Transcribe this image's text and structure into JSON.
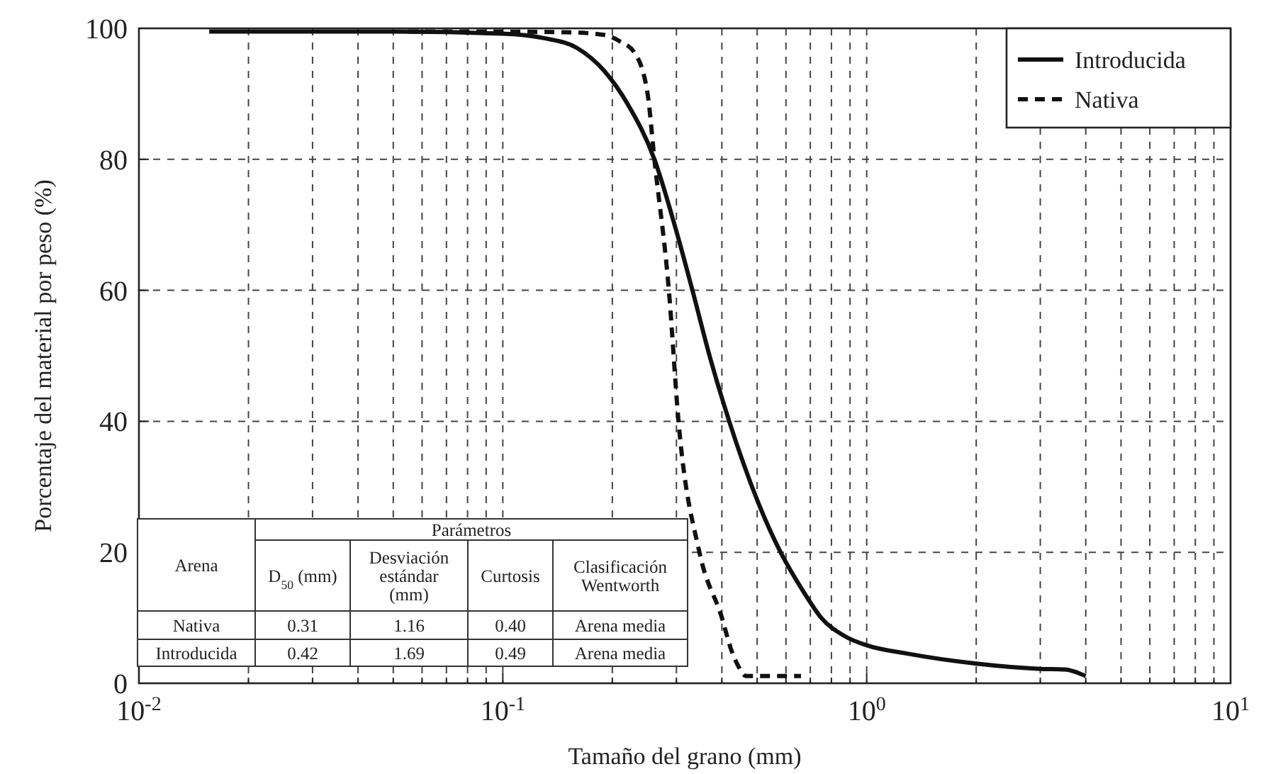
{
  "chart_data": {
    "type": "line",
    "xlabel": "Tamaño del grano (mm)",
    "ylabel": "Porcentaje del material por peso (%)",
    "log": "x",
    "xlim": [
      0.01,
      10
    ],
    "ylim": [
      0,
      100
    ],
    "xticks": [
      {
        "value": 0.01,
        "label": "10$^{-2}$"
      },
      {
        "value": 0.02,
        "label": null
      },
      {
        "value": 0.03,
        "label": null
      },
      {
        "value": 0.04,
        "label": null
      },
      {
        "value": 0.05,
        "label": null
      },
      {
        "value": 0.06,
        "label": null
      },
      {
        "value": 0.07,
        "label": null
      },
      {
        "value": 0.08,
        "label": null
      },
      {
        "value": 0.09,
        "label": null
      },
      {
        "value": 0.1,
        "label": "10$^{-1}$"
      },
      {
        "value": 0.2,
        "label": null
      },
      {
        "value": 0.3,
        "label": null
      },
      {
        "value": 0.4,
        "label": null
      },
      {
        "value": 0.5,
        "label": null
      },
      {
        "value": 0.6,
        "label": null
      },
      {
        "value": 0.7,
        "label": null
      },
      {
        "value": 0.8,
        "label": null
      },
      {
        "value": 0.9,
        "label": null
      },
      {
        "value": 1,
        "label": "10$^{0}$"
      },
      {
        "value": 2,
        "label": null
      },
      {
        "value": 3,
        "label": null
      },
      {
        "value": 4,
        "label": null
      },
      {
        "value": 5,
        "label": null
      },
      {
        "value": 6,
        "label": null
      },
      {
        "value": 7,
        "label": null
      },
      {
        "value": 8,
        "label": null
      },
      {
        "value": 9,
        "label": null
      },
      {
        "value": 10,
        "label": "10$^{1}$"
      }
    ],
    "yticks": [
      0,
      20,
      40,
      60,
      80,
      100
    ],
    "grid": true,
    "legend": "top right",
    "series": [
      {
        "name": "Introducida",
        "color": "#111111",
        "line_style": "solid",
        "x": [
          0.0156,
          0.05,
          0.1,
          0.13,
          0.16,
          0.19,
          0.22,
          0.261,
          0.3,
          0.332,
          0.37,
          0.419,
          0.5,
          0.58,
          0.67,
          0.75,
          0.87,
          1,
          1.3,
          2,
          3,
          3.5,
          4
        ],
        "values": [
          99.5,
          99.5,
          99.2,
          98.5,
          97,
          93.5,
          88.5,
          80,
          69,
          60,
          50,
          40,
          28,
          20,
          14,
          10,
          7.2,
          5.8,
          4.5,
          3,
          2.2,
          2.1,
          1.1
        ]
      },
      {
        "name": "Nativa",
        "color": "#111111",
        "line_style": "dashed",
        "x": [
          0.055,
          0.1,
          0.15,
          0.19,
          0.21,
          0.23,
          0.25,
          0.261,
          0.286,
          0.304,
          0.347,
          0.4,
          0.425,
          0.445,
          0.466,
          0.55,
          0.66
        ],
        "values": [
          99.5,
          99.5,
          99.4,
          99,
          98,
          96.3,
          90,
          80,
          60,
          40,
          20,
          10,
          5,
          2.5,
          1.1,
          1.1,
          1.1
        ]
      }
    ],
    "annotations": [
      "Arena",
      "Parámetros",
      "D$_{50}$ (mm)",
      "Desviación estándar (mm)",
      "Curtosis",
      "Clasificación Wentworth",
      "Nativa",
      "0.31",
      "1.16",
      "0.40",
      "Arena media",
      "Introducida",
      "0.42",
      "1.69",
      "0.49",
      "Arena media"
    ]
  }
}
